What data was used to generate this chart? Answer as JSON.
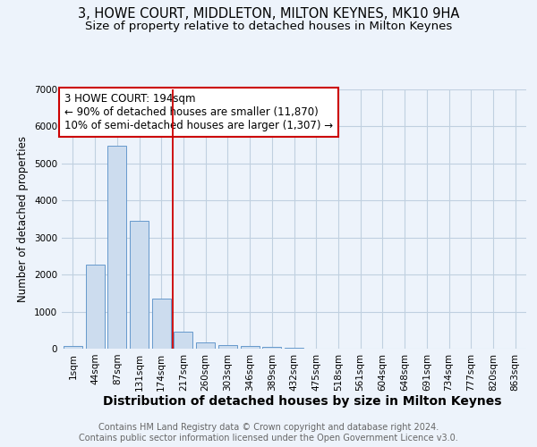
{
  "title": "3, HOWE COURT, MIDDLETON, MILTON KEYNES, MK10 9HA",
  "subtitle": "Size of property relative to detached houses in Milton Keynes",
  "xlabel": "Distribution of detached houses by size in Milton Keynes",
  "ylabel": "Number of detached properties",
  "bar_labels": [
    "1sqm",
    "44sqm",
    "87sqm",
    "131sqm",
    "174sqm",
    "217sqm",
    "260sqm",
    "303sqm",
    "346sqm",
    "389sqm",
    "432sqm",
    "475sqm",
    "518sqm",
    "561sqm",
    "604sqm",
    "648sqm",
    "691sqm",
    "734sqm",
    "777sqm",
    "820sqm",
    "863sqm"
  ],
  "bar_values": [
    70,
    2280,
    5480,
    3440,
    1350,
    460,
    180,
    90,
    75,
    50,
    35,
    0,
    0,
    0,
    0,
    0,
    0,
    0,
    0,
    0,
    0
  ],
  "bar_color": "#ccdcee",
  "bar_edge_color": "#6699cc",
  "grid_color": "#c0d0e0",
  "bg_color": "#edf3fb",
  "vline_color": "#cc0000",
  "annotation_text": "3 HOWE COURT: 194sqm\n← 90% of detached houses are smaller (11,870)\n10% of semi-detached houses are larger (1,307) →",
  "annotation_box_color": "white",
  "annotation_border_color": "#cc0000",
  "ylim": [
    0,
    7000
  ],
  "yticks": [
    0,
    1000,
    2000,
    3000,
    4000,
    5000,
    6000,
    7000
  ],
  "footer_line1": "Contains HM Land Registry data © Crown copyright and database right 2024.",
  "footer_line2": "Contains public sector information licensed under the Open Government Licence v3.0.",
  "title_fontsize": 10.5,
  "subtitle_fontsize": 9.5,
  "xlabel_fontsize": 10,
  "ylabel_fontsize": 8.5,
  "tick_fontsize": 7.5,
  "footer_fontsize": 7,
  "annotation_fontsize": 8.5,
  "vline_pos": 4.5
}
